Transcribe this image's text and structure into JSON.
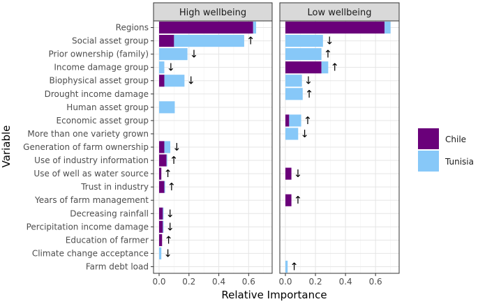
{
  "chart_data": {
    "type": "bar",
    "orientation": "horizontal",
    "stacked": true,
    "xlabel": "Relative Importance",
    "ylabel": "Variable",
    "xlim": [
      0,
      0.72
    ],
    "x_ticks": [
      "0.0",
      "0.2",
      "0.4",
      "0.6"
    ],
    "x_tick_values": [
      0,
      0.2,
      0.4,
      0.6
    ],
    "categories": [
      "Regions",
      "Social asset group",
      "Prior ownership (family)",
      "Income damage group",
      "Biophysical asset group",
      "Drought income damage",
      "Human asset group",
      "Economic asset group",
      "More than one variety grown",
      "Generation of farm ownership",
      "Use of industry information",
      "Use of well as water source",
      "Trust in industry",
      "Years of farm management",
      "Decreasing rainfall",
      "Percipitation income damage",
      "Education of farmer",
      "Climate change acceptance",
      "Farm debt load"
    ],
    "series_names": [
      "Chile",
      "Tunisia"
    ],
    "series_colors": [
      "#6a007a",
      "#87c8f8"
    ],
    "legend": {
      "position": "right",
      "items": [
        "Chile",
        "Tunisia"
      ]
    },
    "panels": [
      {
        "title": "High wellbeing",
        "chile": [
          0.63,
          0.1,
          0.0,
          0.0,
          0.035,
          0.0,
          0.0,
          0.0,
          0.0,
          0.035,
          0.05,
          0.015,
          0.035,
          0.0,
          0.025,
          0.025,
          0.02,
          0.0,
          0.0
        ],
        "tunisia": [
          0.02,
          0.47,
          0.19,
          0.035,
          0.135,
          0.0,
          0.105,
          0.0,
          0.0,
          0.04,
          0.005,
          0.0,
          0.005,
          0.0,
          0.005,
          0.005,
          0.0,
          0.015,
          0.0
        ],
        "arrows": [
          "",
          "↑",
          "↓",
          "↓",
          "↓",
          "",
          "",
          "",
          "",
          "↓",
          "↑",
          "↑",
          "↑",
          "",
          "↓",
          "↓",
          "↑",
          "↓",
          ""
        ]
      },
      {
        "title": "Low wellbeing",
        "chile": [
          0.66,
          0.0,
          0.0,
          0.24,
          0.0,
          0.0,
          0.0,
          0.025,
          0.0,
          0.0,
          0.0,
          0.04,
          0.0,
          0.04,
          0.0,
          0.0,
          0.0,
          0.0,
          0.0
        ],
        "tunisia": [
          0.04,
          0.25,
          0.24,
          0.045,
          0.11,
          0.115,
          0.0,
          0.08,
          0.085,
          0.0,
          0.0,
          0.0,
          0.0,
          0.0,
          0.0,
          0.0,
          0.0,
          0.0,
          0.015
        ],
        "arrows": [
          "",
          "↓",
          "↑",
          "↑",
          "↓",
          "↑",
          "",
          "↑",
          "↓",
          "",
          "",
          "↓",
          "",
          "↑",
          "",
          "",
          "",
          "",
          "↑"
        ]
      }
    ]
  }
}
